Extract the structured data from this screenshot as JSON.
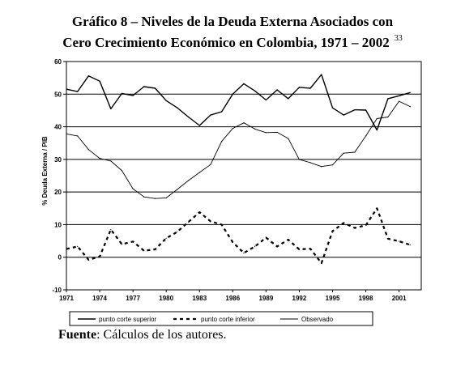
{
  "title": {
    "line1": "Gráfico 8 – Niveles de la Deuda Externa Asociados con",
    "line2": "Cero Crecimiento Económico en Colombia, 1971 – 2002",
    "footnote": "33"
  },
  "source": {
    "label": "Fuente",
    "text": ": Cálculos de los autores."
  },
  "chart_data": {
    "type": "line",
    "ylabel": "% Deuda Externa / PIB",
    "xlabel": "",
    "ylim": [
      -10,
      60
    ],
    "xlim": [
      1971,
      2003
    ],
    "grid": true,
    "legend_position": "bottom",
    "y_ticks": [
      "-10",
      "0",
      "10",
      "20",
      "30",
      "40",
      "50",
      "60"
    ],
    "x_ticks": [
      "1971",
      "1974",
      "1977",
      "1980",
      "1983",
      "1986",
      "1989",
      "1992",
      "1995",
      "1998",
      "2001"
    ],
    "x": [
      1971,
      1972,
      1973,
      1974,
      1975,
      1976,
      1977,
      1978,
      1979,
      1980,
      1981,
      1982,
      1983,
      1984,
      1985,
      1986,
      1987,
      1988,
      1989,
      1990,
      1991,
      1992,
      1993,
      1994,
      1995,
      1996,
      1997,
      1998,
      1999,
      2000,
      2001,
      2002
    ],
    "series": [
      {
        "name": "punto corte superior",
        "style": "solid",
        "values": [
          51.5,
          50.8,
          55.6,
          54.0,
          45.5,
          50.2,
          49.6,
          52.3,
          51.8,
          48.0,
          45.8,
          43.0,
          40.4,
          43.6,
          44.6,
          50.0,
          53.2,
          51.0,
          48.2,
          51.3,
          48.6,
          52.1,
          51.8,
          56.0,
          45.8,
          43.6,
          45.2,
          45.1,
          39.0,
          48.6,
          49.5,
          50.5
        ]
      },
      {
        "name": "punto corte inferior",
        "style": "dashed",
        "values": [
          2.5,
          3.3,
          -0.8,
          0.2,
          8.5,
          4.0,
          4.8,
          2.0,
          2.4,
          5.8,
          7.8,
          10.8,
          13.8,
          11.0,
          10.0,
          4.6,
          1.3,
          3.3,
          6.0,
          3.3,
          5.4,
          2.4,
          2.6,
          -1.8,
          8.0,
          10.5,
          9.0,
          9.8,
          15.0,
          5.7,
          4.9,
          3.8
        ]
      },
      {
        "name": "Observado",
        "style": "solid-thin",
        "values": [
          37.8,
          37.2,
          33.0,
          30.3,
          29.5,
          26.6,
          21.0,
          18.5,
          18.0,
          18.2,
          20.8,
          23.5,
          26.0,
          28.4,
          35.5,
          39.5,
          41.2,
          39.3,
          38.2,
          38.3,
          36.4,
          30.0,
          29.0,
          27.8,
          28.3,
          31.9,
          32.2,
          37.2,
          42.5,
          43.0,
          47.8,
          46.2
        ]
      }
    ]
  }
}
